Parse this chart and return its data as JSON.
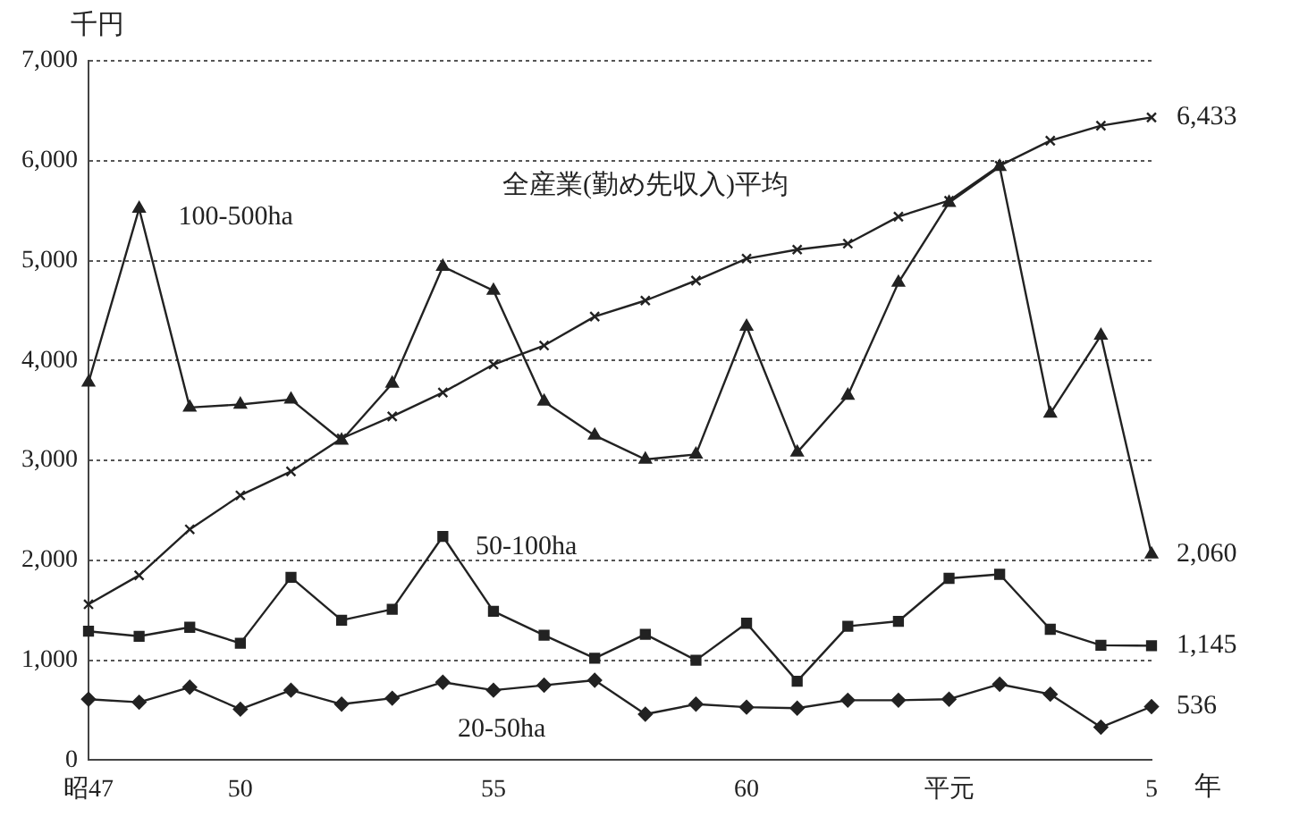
{
  "chart_data": {
    "type": "line",
    "ylabel": "千円",
    "xlabel": "年",
    "categories": [
      "昭47",
      null,
      null,
      "50",
      null,
      null,
      null,
      null,
      "55",
      null,
      null,
      null,
      null,
      "60",
      null,
      null,
      null,
      "平元",
      null,
      null,
      null,
      "5"
    ],
    "ylim": [
      0,
      7000
    ],
    "yticks": [
      0,
      {
        "value": 1000,
        "label": "1,000"
      },
      {
        "value": 2000,
        "label": "2,000"
      },
      {
        "value": 3000,
        "label": "3,000"
      },
      {
        "value": 4000,
        "label": "4,000"
      },
      {
        "value": 5000,
        "label": "5,000"
      },
      {
        "value": 6000,
        "label": "6,000"
      },
      {
        "value": 7000,
        "label": "7,000"
      }
    ],
    "grid": "y",
    "legend": false,
    "line_style": "solid",
    "series": [
      {
        "name": "100-500ha",
        "color": "#222222",
        "marker": "triangle",
        "values": [
          3780,
          5520,
          3530,
          3560,
          3610,
          3200,
          3770,
          4940,
          4700,
          3590,
          3250,
          3010,
          3060,
          4340,
          3080,
          3650,
          4780,
          5580,
          5940,
          3470,
          4250,
          2060
        ],
        "value_labels": [
          null,
          null,
          null,
          null,
          null,
          null,
          null,
          null,
          null,
          null,
          null,
          null,
          null,
          null,
          null,
          null,
          null,
          null,
          null,
          null,
          null,
          "2,060"
        ]
      },
      {
        "name": "全産業(勤め先収入)平均",
        "color": "#222222",
        "marker": "cross",
        "values": [
          1560,
          1850,
          2310,
          2650,
          2890,
          3220,
          3440,
          3680,
          3960,
          4150,
          4440,
          4600,
          4800,
          5020,
          5110,
          5170,
          5440,
          5600,
          5950,
          6200,
          6350,
          6433
        ],
        "value_labels": [
          null,
          null,
          null,
          null,
          null,
          null,
          null,
          null,
          null,
          null,
          null,
          null,
          null,
          null,
          null,
          null,
          null,
          null,
          null,
          null,
          null,
          "6,433"
        ]
      },
      {
        "name": "50-100ha",
        "color": "#222222",
        "marker": "square",
        "values": [
          1290,
          1240,
          1330,
          1170,
          1830,
          1400,
          1510,
          2240,
          1490,
          1250,
          1020,
          1260,
          1000,
          1370,
          790,
          1340,
          1390,
          1820,
          1860,
          1310,
          1150,
          1145
        ],
        "value_labels": [
          null,
          null,
          null,
          null,
          null,
          null,
          null,
          null,
          null,
          null,
          null,
          null,
          null,
          null,
          null,
          null,
          null,
          null,
          null,
          null,
          null,
          "1,145"
        ]
      },
      {
        "name": "20-50ha",
        "color": "#222222",
        "marker": "diamond",
        "values": [
          610,
          580,
          730,
          510,
          700,
          560,
          620,
          780,
          700,
          750,
          800,
          460,
          560,
          530,
          520,
          600,
          600,
          610,
          760,
          660,
          330,
          536
        ],
        "value_labels": [
          null,
          null,
          null,
          null,
          null,
          null,
          null,
          null,
          null,
          null,
          null,
          null,
          null,
          null,
          null,
          null,
          null,
          null,
          null,
          null,
          null,
          "536"
        ]
      }
    ]
  }
}
